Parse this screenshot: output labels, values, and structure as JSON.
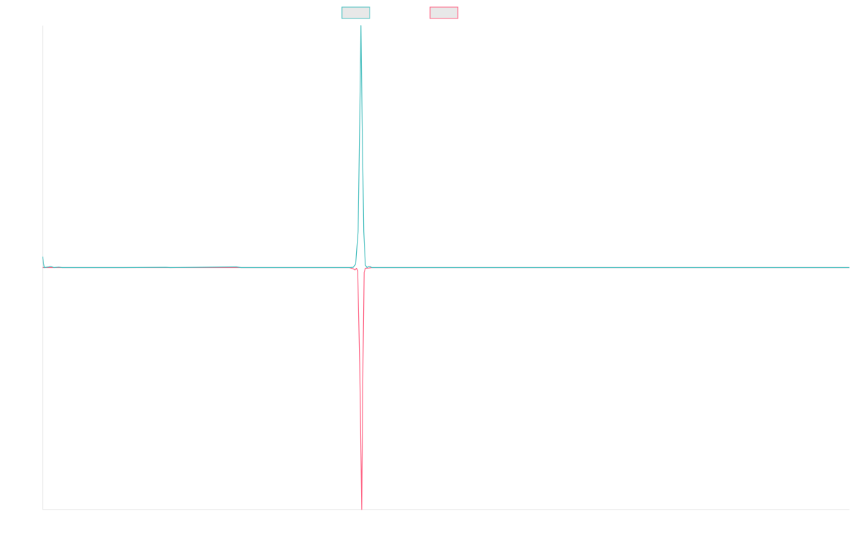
{
  "chart_data": {
    "type": "line",
    "xlim": [
      0,
      1000
    ],
    "ylim": [
      -100,
      100
    ],
    "grid": false,
    "legend_position": "top-center",
    "colors": {
      "series_a": "#4bc0c0",
      "series_b": "#ff6384",
      "legend_fill": "#e8e8e8",
      "axis": "#e3e3e3"
    },
    "series": [
      {
        "id": "series_a",
        "points": [
          [
            0,
            4.5
          ],
          [
            2,
            0
          ],
          [
            8,
            0.3
          ],
          [
            10,
            0.5
          ],
          [
            14,
            0
          ],
          [
            20,
            0.2
          ],
          [
            24,
            0
          ],
          [
            100,
            0
          ],
          [
            153,
            0.1
          ],
          [
            158,
            0
          ],
          [
            240,
            0.3
          ],
          [
            246,
            0
          ],
          [
            380,
            0
          ],
          [
            385,
            0.1
          ],
          [
            388,
            1.5
          ],
          [
            391,
            15
          ],
          [
            393,
            60
          ],
          [
            394.5,
            100
          ],
          [
            396,
            60
          ],
          [
            398,
            15
          ],
          [
            400,
            1
          ],
          [
            402,
            0
          ],
          [
            404,
            0.4
          ],
          [
            406,
            0.4
          ],
          [
            408,
            0
          ],
          [
            1000,
            0
          ]
        ]
      },
      {
        "id": "series_b",
        "points": [
          [
            0,
            0
          ],
          [
            380,
            0
          ],
          [
            385,
            -0.5
          ],
          [
            387,
            -1
          ],
          [
            389,
            -0.3
          ],
          [
            390.5,
            -1.5
          ],
          [
            393,
            -40
          ],
          [
            395.5,
            -100
          ],
          [
            397,
            -40
          ],
          [
            398.5,
            -2
          ],
          [
            400,
            -0.3
          ],
          [
            404,
            -0.2
          ],
          [
            408,
            0
          ],
          [
            1000,
            0
          ]
        ]
      }
    ]
  }
}
